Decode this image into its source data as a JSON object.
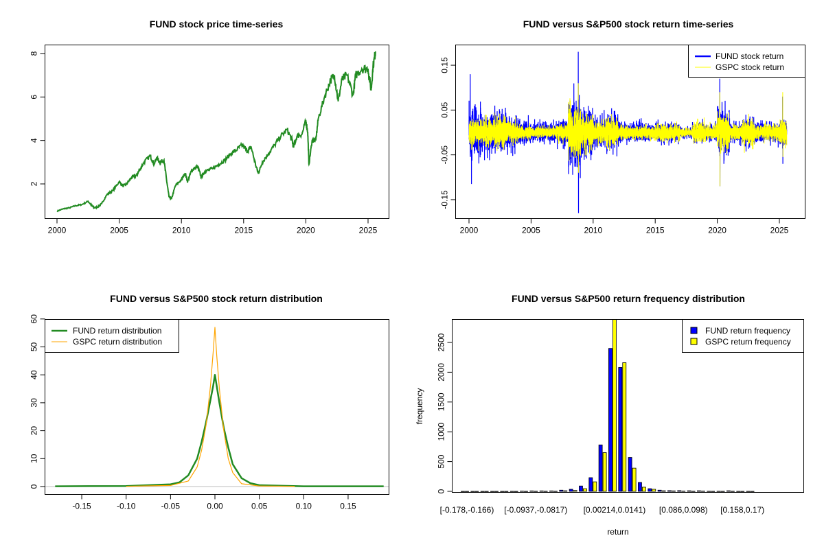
{
  "chart_data": [
    {
      "type": "line",
      "title": "FUND stock price time-series",
      "xlabel": "",
      "ylabel": "",
      "xlim": [
        1999.0,
        2026.7
      ],
      "ylim": [
        0.4,
        8.4
      ],
      "xticks": [
        2000,
        2005,
        2010,
        2015,
        2020,
        2025
      ],
      "yticks": [
        2,
        4,
        6,
        8
      ],
      "color": "#228B22",
      "series": [
        {
          "name": "FUND price",
          "x": [
            2000.0,
            2000.5,
            2001.0,
            2001.5,
            2002.0,
            2002.5,
            2002.8,
            2003.0,
            2003.3,
            2003.6,
            2004.0,
            2004.5,
            2005.0,
            2005.3,
            2005.6,
            2006.0,
            2006.4,
            2006.6,
            2007.0,
            2007.5,
            2007.8,
            2008.0,
            2008.3,
            2008.6,
            2008.8,
            2009.0,
            2009.2,
            2009.5,
            2010.0,
            2010.3,
            2010.5,
            2010.8,
            2011.0,
            2011.3,
            2011.6,
            2011.8,
            2012.0,
            2012.5,
            2013.0,
            2013.5,
            2014.0,
            2014.5,
            2014.9,
            2015.3,
            2015.6,
            2016.0,
            2016.2,
            2016.5,
            2017.0,
            2017.5,
            2018.0,
            2018.5,
            2018.9,
            2019.0,
            2019.3,
            2019.7,
            2020.0,
            2020.15,
            2020.25,
            2020.5,
            2020.8,
            2021.0,
            2021.5,
            2022.0,
            2022.3,
            2022.6,
            2022.9,
            2023.3,
            2023.8,
            2024.0,
            2024.5,
            2025.0,
            2025.25,
            2025.4,
            2025.6
          ],
          "y": [
            0.75,
            0.85,
            0.9,
            1.0,
            1.05,
            1.2,
            1.0,
            0.9,
            0.95,
            1.1,
            1.5,
            1.7,
            2.1,
            1.9,
            2.0,
            2.3,
            2.4,
            2.6,
            3.0,
            3.3,
            2.9,
            3.2,
            3.0,
            3.1,
            2.2,
            1.4,
            1.3,
            1.9,
            2.2,
            2.5,
            2.1,
            2.6,
            2.7,
            2.8,
            2.3,
            2.5,
            2.6,
            2.7,
            2.9,
            3.1,
            3.4,
            3.6,
            3.8,
            3.5,
            3.7,
            2.8,
            2.5,
            3.0,
            3.4,
            3.8,
            4.2,
            4.5,
            4.0,
            3.7,
            4.2,
            4.3,
            4.9,
            4.4,
            2.9,
            4.0,
            4.0,
            5.0,
            6.0,
            6.8,
            7.0,
            5.8,
            6.8,
            7.0,
            6.1,
            7.0,
            7.3,
            7.3,
            6.3,
            7.4,
            8.1
          ]
        }
      ]
    },
    {
      "type": "line",
      "title": "FUND versus S&P500 stock return time-series",
      "xlim": [
        1999.0,
        2026.7
      ],
      "ylim": [
        -0.19,
        0.19
      ],
      "xticks": [
        2000,
        2005,
        2010,
        2015,
        2020,
        2025
      ],
      "yticks": [
        -0.15,
        -0.05,
        0.05,
        0.15
      ],
      "ytick_labels": [
        "-0.15",
        "-0.05",
        "0.05",
        "0.15"
      ],
      "legend": {
        "position": "top-right",
        "entries": [
          "FUND stock return",
          "GSPC stock return"
        ]
      },
      "series": [
        {
          "name": "FUND stock return",
          "color": "#0000FF",
          "yearly_volatility": [
            0.025,
            0.02,
            0.022,
            0.015,
            0.012,
            0.01,
            0.01,
            0.013,
            0.035,
            0.025,
            0.015,
            0.018,
            0.01,
            0.009,
            0.008,
            0.01,
            0.01,
            0.006,
            0.01,
            0.008,
            0.025,
            0.01,
            0.015,
            0.01,
            0.009,
            0.015
          ],
          "extremes": [
            [
              2000.1,
              0.13
            ],
            [
              2000.2,
              -0.115
            ],
            [
              2008.8,
              0.18
            ],
            [
              2008.82,
              -0.18
            ],
            [
              2020.2,
              0.12
            ],
            [
              2020.22,
              -0.12
            ],
            [
              2025.26,
              0.08
            ],
            [
              2025.28,
              -0.07
            ]
          ]
        },
        {
          "name": "GSPC stock return",
          "color": "#FFFF00",
          "yearly_volatility": [
            0.014,
            0.013,
            0.016,
            0.011,
            0.007,
            0.006,
            0.006,
            0.01,
            0.028,
            0.017,
            0.011,
            0.014,
            0.008,
            0.007,
            0.007,
            0.009,
            0.008,
            0.004,
            0.011,
            0.008,
            0.02,
            0.008,
            0.014,
            0.008,
            0.008,
            0.013
          ],
          "extremes": [
            [
              2008.8,
              0.11
            ],
            [
              2008.83,
              -0.09
            ],
            [
              2020.2,
              0.09
            ],
            [
              2020.22,
              -0.12
            ],
            [
              2025.27,
              0.09
            ],
            [
              2025.29,
              -0.055
            ]
          ]
        }
      ],
      "first_year": 2000
    },
    {
      "type": "line",
      "title": "FUND versus S&P500 stock return distribution",
      "xlim": [
        -0.19,
        0.2
      ],
      "ylim": [
        0,
        60
      ],
      "xticks": [
        -0.15,
        -0.1,
        -0.05,
        0.0,
        0.05,
        0.1,
        0.15
      ],
      "xtick_labels": [
        "-0.15",
        "-0.10",
        "-0.05",
        "0.00",
        "0.05",
        "0.10",
        "0.15"
      ],
      "yticks": [
        0,
        10,
        20,
        30,
        40,
        50,
        60
      ],
      "legend": {
        "position": "top-left",
        "entries": [
          "FUND return distribution",
          "GSPC return distribution"
        ]
      },
      "series": [
        {
          "name": "FUND return distribution",
          "color": "#228B22",
          "x": [
            -0.18,
            -0.1,
            -0.05,
            -0.04,
            -0.03,
            -0.02,
            -0.015,
            -0.01,
            -0.005,
            -0.002,
            0,
            0.002,
            0.005,
            0.01,
            0.015,
            0.02,
            0.03,
            0.04,
            0.05,
            0.1,
            0.19
          ],
          "y": [
            0.1,
            0.2,
            0.8,
            1.5,
            4,
            10,
            16,
            23,
            31,
            36,
            40,
            36,
            30,
            21,
            14,
            8,
            3,
            1.2,
            0.5,
            0.1,
            0.1
          ]
        },
        {
          "name": "GSPC return distribution",
          "color": "#FFA500",
          "x": [
            -0.1,
            -0.05,
            -0.03,
            -0.02,
            -0.015,
            -0.01,
            -0.005,
            -0.002,
            0,
            0.002,
            0.005,
            0.01,
            0.015,
            0.02,
            0.03,
            0.05,
            0.09
          ],
          "y": [
            0.1,
            0.4,
            2,
            7,
            13,
            22,
            36,
            48,
            57,
            47,
            35,
            20,
            10,
            5,
            1,
            0.2,
            0.1
          ]
        }
      ]
    },
    {
      "type": "bar",
      "title": "FUND versus S&P500 return frequency distribution",
      "xlabel": "return",
      "ylabel": "frequency",
      "ylim": [
        0,
        2900
      ],
      "yticks": [
        0,
        500,
        1000,
        1500,
        2000,
        2500
      ],
      "bin_count": 30,
      "visible_category_labels": [
        {
          "bin": 0,
          "label": "[-0.178,-0.166)"
        },
        {
          "bin": 7,
          "label": "[-0.0937,-0.0817)"
        },
        {
          "bin": 15,
          "label": "[0.00214,0.0141)"
        },
        {
          "bin": 22,
          "label": "[0.086,0.098)"
        },
        {
          "bin": 28,
          "label": "[0.158,0.17)"
        }
      ],
      "legend": {
        "position": "top-right",
        "entries": [
          "FUND return frequency",
          "GSPC return frequency"
        ]
      },
      "series": [
        {
          "name": "FUND return frequency",
          "color": "#0000FF",
          "values": [
            1,
            1,
            1,
            1,
            1,
            2,
            5,
            8,
            8,
            8,
            20,
            35,
            90,
            230,
            780,
            2400,
            2080,
            570,
            150,
            45,
            20,
            12,
            12,
            10,
            10,
            3,
            3,
            10,
            2,
            2
          ]
        },
        {
          "name": "GSPC return frequency",
          "color": "#FFFF00",
          "values": [
            1,
            1,
            1,
            1,
            1,
            1,
            2,
            3,
            3,
            3,
            10,
            15,
            45,
            160,
            650,
            2950,
            2160,
            390,
            70,
            35,
            10,
            8,
            5,
            3,
            5,
            2,
            2,
            3,
            1,
            1
          ]
        }
      ]
    }
  ]
}
